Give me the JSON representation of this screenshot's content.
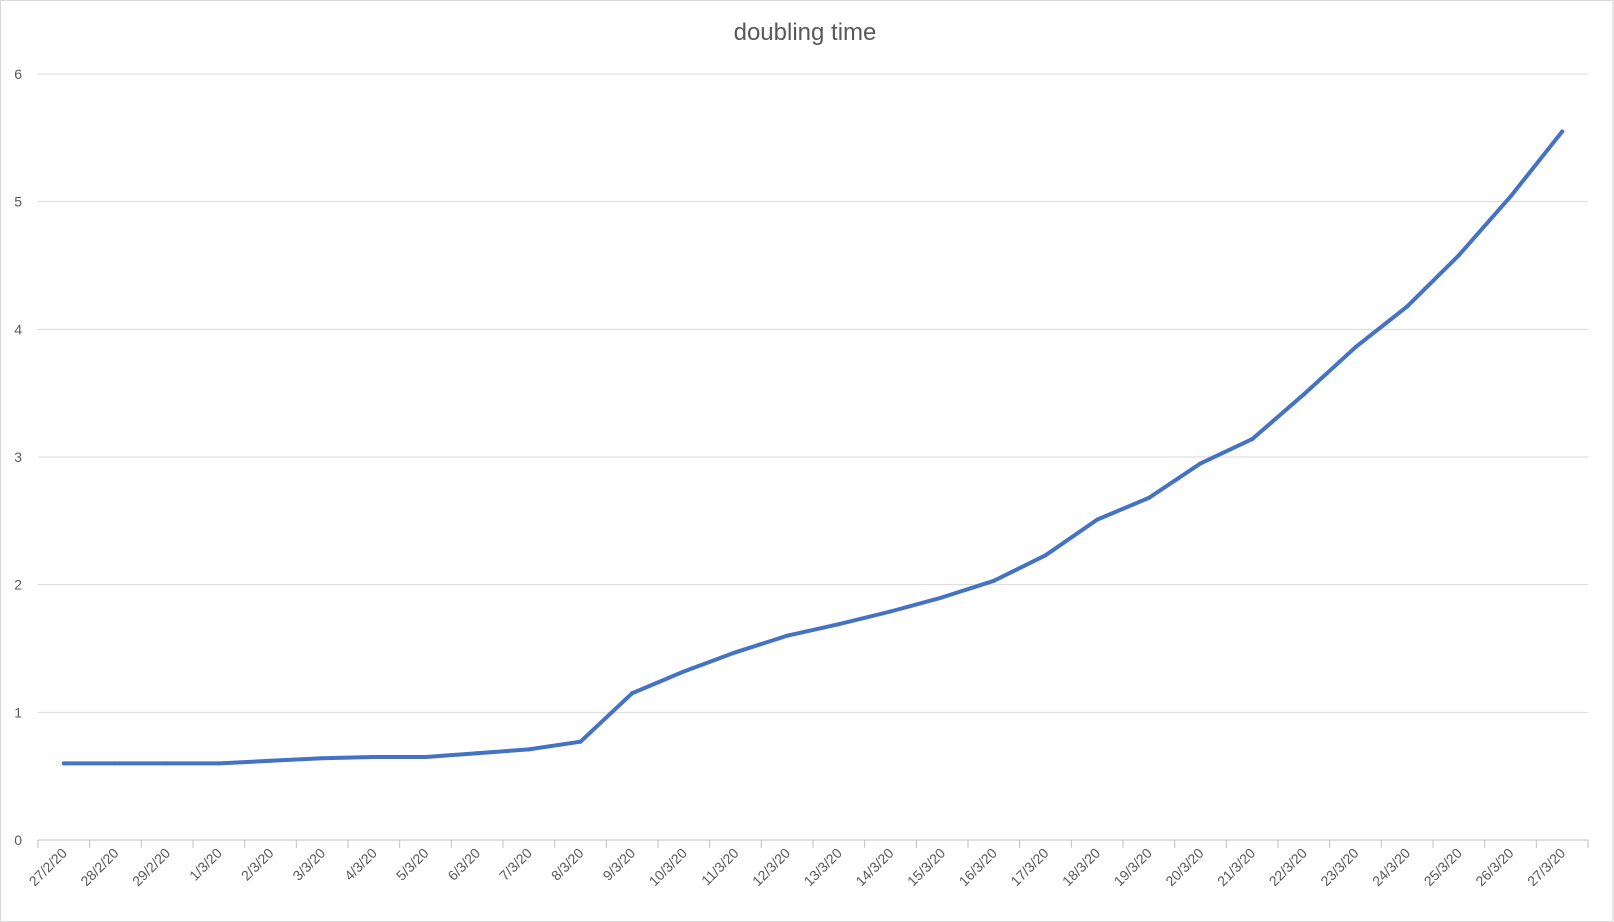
{
  "chart_data": {
    "type": "line",
    "title": "doubling time",
    "xlabel": "",
    "ylabel": "",
    "ylim": [
      0,
      6
    ],
    "yticks": [
      "0",
      "1",
      "2",
      "3",
      "4",
      "5",
      "6"
    ],
    "grid": true,
    "legend": "none",
    "categories": [
      "27/2/20",
      "28/2/20",
      "29/2/20",
      "1/3/20",
      "2/3/20",
      "3/3/20",
      "4/3/20",
      "5/3/20",
      "6/3/20",
      "7/3/20",
      "8/3/20",
      "9/3/20",
      "10/3/20",
      "11/3/20",
      "12/3/20",
      "13/3/20",
      "14/3/20",
      "15/3/20",
      "16/3/20",
      "17/3/20",
      "18/3/20",
      "19/3/20",
      "20/3/20",
      "21/3/20",
      "22/3/20",
      "23/3/20",
      "24/3/20",
      "25/3/20",
      "26/3/20",
      "27/3/20"
    ],
    "series": [
      {
        "color": "#4472c4",
        "values": [
          0.6,
          0.6,
          0.6,
          0.6,
          0.62,
          0.64,
          0.65,
          0.65,
          0.68,
          0.71,
          0.77,
          1.15,
          1.32,
          1.47,
          1.6,
          1.69,
          1.79,
          1.9,
          2.03,
          2.23,
          2.51,
          2.68,
          2.95,
          3.14,
          3.49,
          3.86,
          4.18,
          4.58,
          5.04,
          5.55
        ]
      }
    ]
  }
}
